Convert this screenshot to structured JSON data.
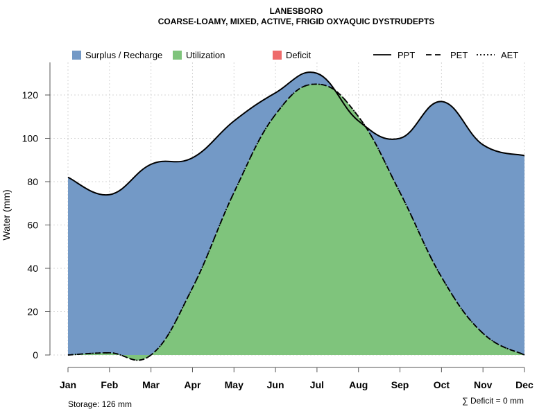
{
  "chart_data": {
    "type": "area",
    "title": "LANESBORO",
    "subtitle": "COARSE-LOAMY, MIXED, ACTIVE, FRIGID OXYAQUIC DYSTRUDEPTS",
    "ylabel": "Water (mm)",
    "xlabel": "",
    "ylim": [
      0,
      135
    ],
    "yticks": [
      0,
      20,
      40,
      60,
      80,
      100,
      120
    ],
    "categories": [
      "Jan",
      "Feb",
      "Mar",
      "Apr",
      "May",
      "Jun",
      "Jul",
      "Aug",
      "Sep",
      "Oct",
      "Nov",
      "Dec"
    ],
    "grid": true,
    "series": [
      {
        "name": "PPT",
        "style": "solid",
        "values": [
          82,
          74,
          88,
          91,
          108,
          121,
          130,
          108,
          100,
          117,
          97,
          92
        ]
      },
      {
        "name": "PET",
        "style": "dashed",
        "values": [
          0,
          1,
          0,
          31,
          75,
          111,
          125,
          110,
          75,
          36,
          10,
          0
        ]
      },
      {
        "name": "AET",
        "style": "dotted",
        "values": [
          0,
          1,
          0,
          31,
          75,
          111,
          125,
          110,
          75,
          36,
          10,
          0
        ]
      }
    ],
    "areas": [
      {
        "name": "Surplus / Recharge",
        "color": "#7399c6"
      },
      {
        "name": "Utilization",
        "color": "#7fc47c"
      },
      {
        "name": "Deficit",
        "color": "#ee6b6b"
      }
    ],
    "legend_position": "top",
    "storage_note": "Storage: 126 mm",
    "deficit_note": "∑ Deficit = 0 mm"
  }
}
